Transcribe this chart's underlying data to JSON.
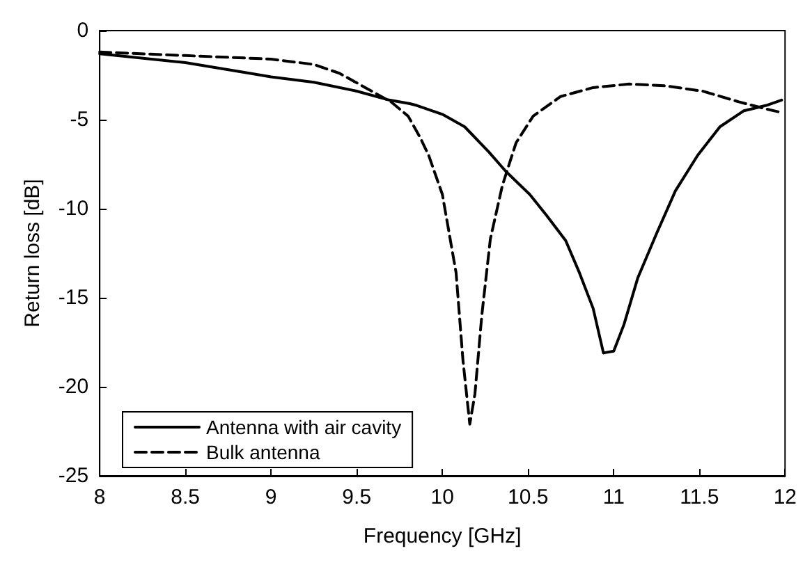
{
  "chart_data": {
    "type": "line",
    "xlabel": "Frequency [GHz]",
    "ylabel": "Return loss [dB]",
    "xlim": [
      8,
      12
    ],
    "xticks": [
      8,
      8.5,
      9,
      9.5,
      10,
      10.5,
      11,
      11.5,
      12
    ],
    "ylim": [
      -25,
      0
    ],
    "yticks": [
      -25,
      -20,
      -15,
      -10,
      -5,
      0
    ],
    "grid": false,
    "legend": "bottom left",
    "marker": "none",
    "series": [
      {
        "name": "Antenna with air cavity",
        "color": "#000000",
        "line_style": "solid",
        "x": [
          8,
          8.5,
          8.88,
          9,
          9.25,
          9.5,
          9.69,
          9.81,
          9.85,
          10,
          10.13,
          10.27,
          10.37,
          10.51,
          10.61,
          10.72,
          10.8,
          10.88,
          10.94,
          11,
          11.06,
          11.14,
          11.25,
          11.36,
          11.49,
          11.62,
          11.76,
          11.89,
          11.98
        ],
        "values": [
          -1.3,
          -1.8,
          -2.4,
          -2.6,
          -2.9,
          -3.4,
          -3.9,
          -4.1,
          -4.2,
          -4.7,
          -5.4,
          -6.8,
          -7.9,
          -9.2,
          -10.4,
          -11.8,
          -13.6,
          -15.6,
          -18.1,
          -18,
          -16.5,
          -13.9,
          -11.4,
          -9,
          -7,
          -5.4,
          -4.5,
          -4.2,
          -3.9
        ]
      },
      {
        "name": "Bulk antenna",
        "color": "#000000",
        "line_style": "dashed",
        "x": [
          8,
          8.5,
          9,
          9.25,
          9.4,
          9.55,
          9.7,
          9.8,
          9.87,
          9.92,
          10,
          10.08,
          10.12,
          10.16,
          10.19,
          10.23,
          10.28,
          10.35,
          10.43,
          10.53,
          10.69,
          10.88,
          11.09,
          11.3,
          11.52,
          11.73,
          11.89,
          11.98
        ],
        "values": [
          -1.2,
          -1.4,
          -1.6,
          -1.9,
          -2.4,
          -3.2,
          -4,
          -4.8,
          -6,
          -7,
          -9.2,
          -13.6,
          -18.5,
          -22.1,
          -20.4,
          -16,
          -11.7,
          -8.7,
          -6.3,
          -4.8,
          -3.7,
          -3.2,
          -3,
          -3.1,
          -3.4,
          -4,
          -4.4,
          -4.6
        ]
      }
    ]
  }
}
